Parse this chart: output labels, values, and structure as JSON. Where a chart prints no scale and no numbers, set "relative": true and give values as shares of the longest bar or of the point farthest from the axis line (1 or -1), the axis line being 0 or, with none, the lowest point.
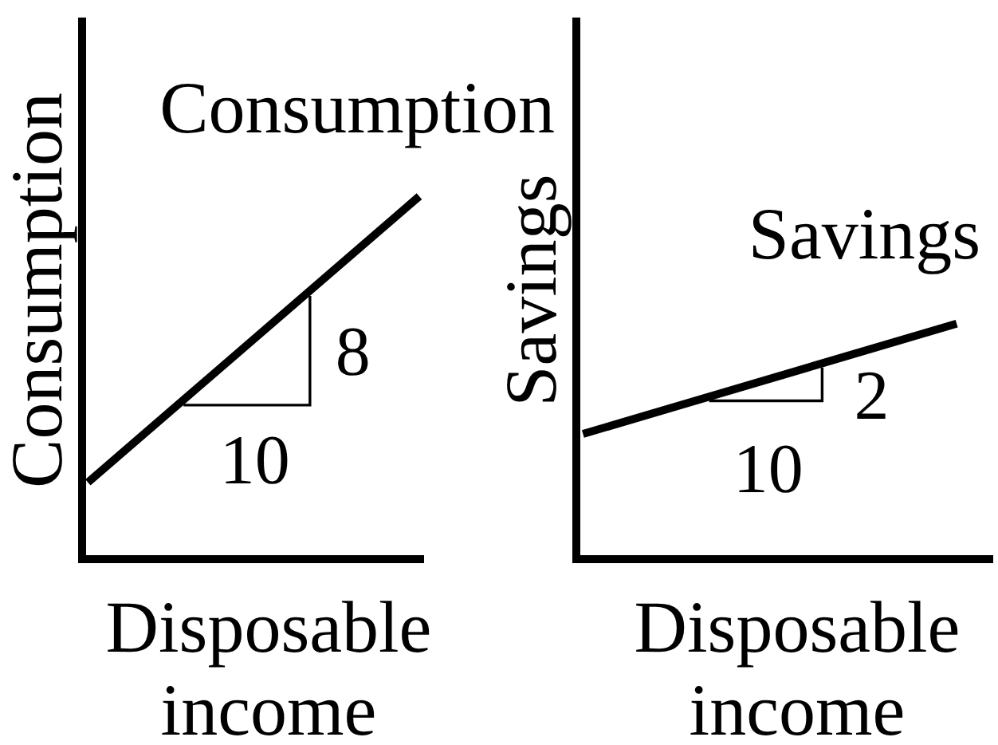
{
  "chart_data": [
    {
      "type": "line",
      "relative": true,
      "categories": [
        null,
        null
      ],
      "xlabel": "Disposable income",
      "ylabel": "Consumption",
      "series": [
        {
          "name": "Consumption",
          "color": "#000000",
          "values": [
            0.21,
            1
          ]
        }
      ],
      "annotations": [
        "8",
        "10"
      ]
    },
    {
      "type": "line",
      "relative": true,
      "categories": [
        null,
        null
      ],
      "xlabel": "Disposable income",
      "ylabel": "Savings",
      "series": [
        {
          "name": "Savings",
          "color": "#000000",
          "values": [
            0.53,
            1
          ]
        }
      ],
      "annotations": [
        "2",
        "10"
      ]
    }
  ]
}
